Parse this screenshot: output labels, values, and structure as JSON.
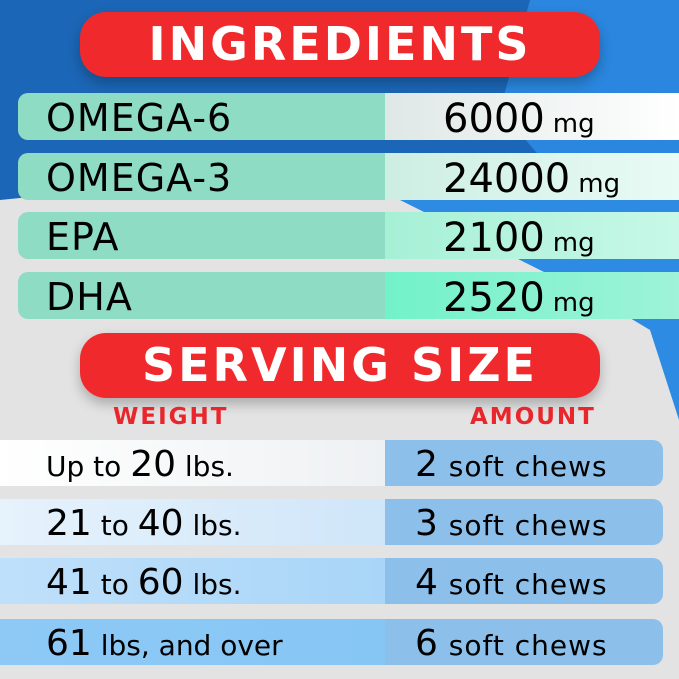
{
  "colors": {
    "banner": "#f02a2c",
    "header_text": "#e8262b",
    "blue_bg": "#1b66b6",
    "mint": "#8fdcc4",
    "amount_cell": "#8cc0ea"
  },
  "ingredients": {
    "title": "INGREDIENTS",
    "rows": [
      {
        "name": "OMEGA-6",
        "value": "6000",
        "unit": "mg"
      },
      {
        "name": "OMEGA-3",
        "value": "24000",
        "unit": "mg"
      },
      {
        "name": "EPA",
        "value": "2100",
        "unit": "mg"
      },
      {
        "name": "DHA",
        "value": "2520",
        "unit": "mg"
      }
    ]
  },
  "serving": {
    "title": "SERVING SIZE",
    "weight_header": "WEIGHT",
    "amount_header": "AMOUNT",
    "rows": [
      {
        "w1": "Up to ",
        "w2": "20",
        "w3": " lbs.",
        "w4": "",
        "count": "2",
        "amount": " soft chews"
      },
      {
        "w1": "",
        "w2": "21",
        "w3": " to ",
        "w4": "40",
        "w5": " lbs.",
        "count": "3",
        "amount": " soft chews"
      },
      {
        "w1": "",
        "w2": "41",
        "w3": " to ",
        "w4": "60",
        "w5": " lbs.",
        "count": "4",
        "amount": " soft chews"
      },
      {
        "w1": "",
        "w2": "61",
        "w3": " lbs, and over",
        "w4": "",
        "count": "6",
        "amount": " soft chews"
      }
    ]
  }
}
